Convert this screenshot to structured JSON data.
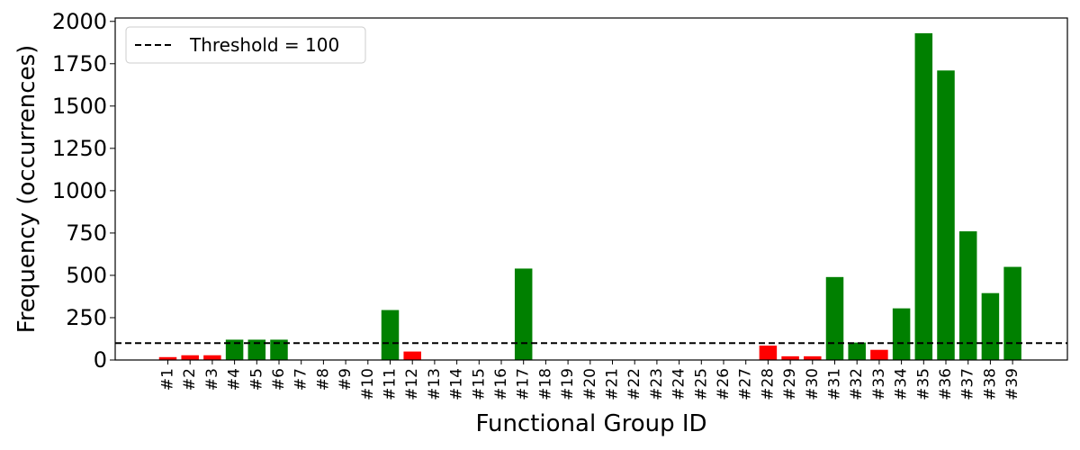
{
  "chart_data": {
    "type": "bar",
    "title": "",
    "xlabel": "Functional Group ID",
    "ylabel": "Frequency (occurrences)",
    "ylim": [
      0,
      2020
    ],
    "yticks": [
      0,
      250,
      500,
      750,
      1000,
      1250,
      1500,
      1750,
      2000
    ],
    "grid": false,
    "legend": {
      "placement": "top-left",
      "entries": [
        "Threshold = 100"
      ]
    },
    "threshold": {
      "value": 100,
      "label": "Threshold = 100",
      "style": "dashed",
      "color": "#000000"
    },
    "colors": {
      "above": "#008000",
      "below": "#ff0000"
    },
    "categories": [
      "#1",
      "#2",
      "#3",
      "#4",
      "#5",
      "#6",
      "#7",
      "#8",
      "#9",
      "#10",
      "#11",
      "#12",
      "#13",
      "#14",
      "#15",
      "#16",
      "#17",
      "#18",
      "#19",
      "#20",
      "#21",
      "#22",
      "#23",
      "#24",
      "#25",
      "#26",
      "#27",
      "#28",
      "#29",
      "#30",
      "#31",
      "#32",
      "#33",
      "#34",
      "#35",
      "#36",
      "#37",
      "#38",
      "#39"
    ],
    "values": [
      17,
      28,
      28,
      120,
      120,
      120,
      0,
      0,
      0,
      0,
      295,
      50,
      0,
      0,
      0,
      0,
      540,
      0,
      0,
      0,
      0,
      0,
      0,
      0,
      0,
      0,
      0,
      85,
      22,
      22,
      490,
      103,
      60,
      305,
      1930,
      1710,
      760,
      395,
      550
    ]
  }
}
